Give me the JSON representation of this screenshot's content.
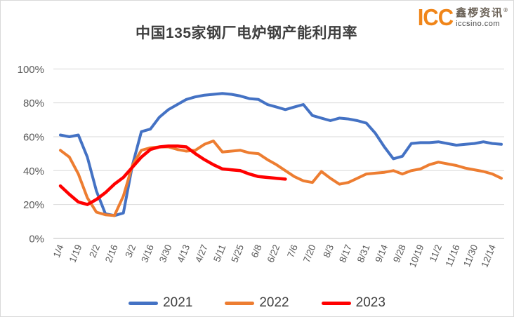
{
  "header": {
    "title": "中国135家钢厂电炉钢产能利用率",
    "logo": {
      "icc": "ICC",
      "brand": "鑫椤资讯",
      "reg_mark": "®",
      "domain": "iccsino.com",
      "accent_color": "#F08519"
    }
  },
  "colors": {
    "gridline": "#D9D9D9",
    "baseline": "#BFBFBF",
    "axis_text": "#595959",
    "title_text": "#3F3F3F",
    "legend_text": "#404040",
    "background": "#FFFFFF"
  },
  "chart_data": {
    "type": "line",
    "title": "中国135家钢厂电炉钢产能利用率",
    "xlabel": "",
    "ylabel": "",
    "ylim": [
      0,
      100
    ],
    "grid": true,
    "legend_position": "bottom",
    "y_tick_labels": [
      "0%",
      "20%",
      "40%",
      "60%",
      "80%",
      "100%"
    ],
    "y_tick_values": [
      0,
      20,
      40,
      60,
      80,
      100
    ],
    "num_points": 50,
    "x_tick_labels": [
      "1/4",
      "1/19",
      "2/2",
      "2/16",
      "3/2",
      "3/16",
      "3/30",
      "4/13",
      "4/27",
      "5/11",
      "5/25",
      "6/8",
      "6/22",
      "7/6",
      "7/20",
      "8/3",
      "8/17",
      "8/31",
      "9/14",
      "9/28",
      "10/19",
      "11/2",
      "11/16",
      "11/30",
      "12/14"
    ],
    "x_tick_point_step": 2,
    "series": [
      {
        "name": "2021",
        "color": "#4472C4",
        "width": 4,
        "values": [
          61,
          60,
          61,
          48,
          28,
          14.5,
          13.5,
          15,
          43,
          63,
          64.5,
          71.5,
          76,
          79,
          82,
          83.5,
          84.5,
          85,
          85.5,
          85,
          84,
          82.5,
          82,
          79,
          77.5,
          76,
          77.5,
          79,
          72.5,
          71,
          69.5,
          71,
          70.5,
          69.5,
          68,
          62,
          54,
          47,
          48.5,
          56,
          56.5,
          56.5,
          57,
          56,
          55,
          55.5,
          56,
          57,
          56,
          55.5
        ]
      },
      {
        "name": "2022",
        "color": "#ED7D31",
        "width": 4,
        "values": [
          52,
          48,
          38,
          24,
          15.5,
          14,
          13.5,
          25,
          43,
          52,
          53.5,
          54,
          54,
          52.5,
          51.5,
          52,
          55.5,
          57.5,
          51,
          51.5,
          52,
          50.5,
          50,
          46.5,
          43.5,
          40,
          36.5,
          34,
          33,
          39.5,
          35.5,
          32,
          33,
          35.5,
          38,
          38.5,
          39,
          40,
          38,
          40,
          41,
          43.5,
          45,
          44,
          43,
          41.5,
          40.5,
          39.5,
          38,
          35.5
        ]
      },
      {
        "name": "2023",
        "color": "#FF0000",
        "width": 4.5,
        "values": [
          31,
          26,
          21.5,
          20,
          23,
          27,
          32,
          36,
          42,
          48,
          52.5,
          54,
          54.5,
          54.5,
          54,
          50,
          46.5,
          43.5,
          41,
          40.5,
          40,
          38,
          36.5,
          36,
          35.5,
          35
        ]
      }
    ]
  }
}
